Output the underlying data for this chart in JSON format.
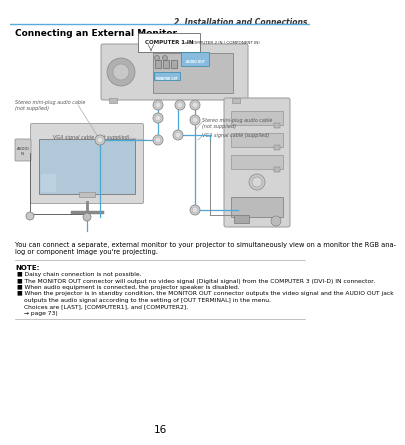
{
  "page_number": "16",
  "chapter_title": "2. Installation and Connections",
  "section_title": "Connecting an External Monitor",
  "body_text1": "You can connect a separate, external monitor to your projector to simultaneously view on a monitor the RGB ana-",
  "body_text2": "log or component image you're projecting.",
  "note_label": "NOTE:",
  "note_bullets": [
    "Daisy chain connection is not possible.",
    "The MONITOR OUT connector will output no video signal (Digital signal) from the COMPUTER 3 (DVI-D) IN connector.",
    "When audio equipment is connected, the projector speaker is disabled.",
    "When the projector is in standby condition, the MONITOR OUT connector outputs the video signal and the AUDIO OUT jack",
    "outputs the audio signal according to the setting of [OUT TERMINAL] in the menu.",
    "Choices are [LAST], [COMPUTER1], and [COMPUTER2].",
    "(→ page 73)"
  ],
  "bg_color": "#ffffff",
  "text_color": "#000000",
  "chapter_color": "#333333",
  "blue_line_color": "#4da6d4",
  "note_line_color": "#aaaaaa",
  "label_italic_color": "#555555",
  "header_line_color": "#5aabdb"
}
